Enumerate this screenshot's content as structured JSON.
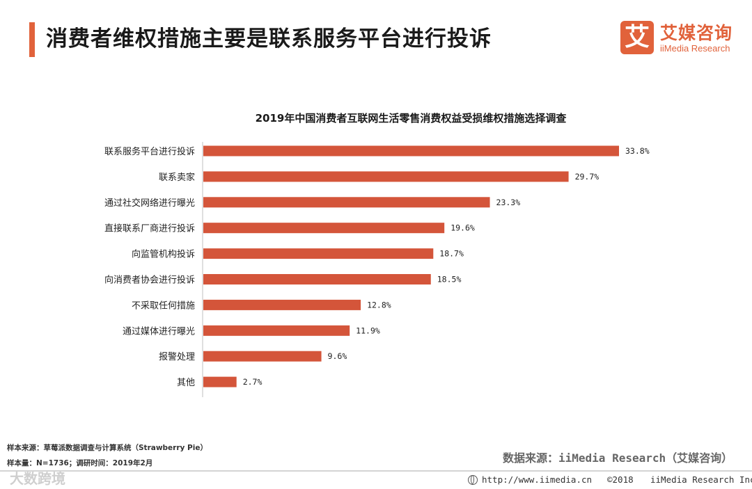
{
  "header": {
    "title": "消费者维权措施主要是联系服务平台进行投诉",
    "logo_mark": "艾",
    "logo_name": "艾媒咨询",
    "logo_sub": "iiMedia Research"
  },
  "chart_data": {
    "type": "bar",
    "orientation": "horizontal",
    "title": "2019年中国消费者互联网生活零售消费权益受损维权措施选择调查",
    "categories": [
      "联系服务平台进行投诉",
      "联系卖家",
      "通过社交网络进行曝光",
      "直接联系厂商进行投诉",
      "向监管机构投诉",
      "向消费者协会进行投诉",
      "不采取任何措施",
      "通过媒体进行曝光",
      "报警处理",
      "其他"
    ],
    "values": [
      33.8,
      29.7,
      23.3,
      19.6,
      18.7,
      18.5,
      12.8,
      11.9,
      9.6,
      2.7
    ],
    "value_labels": [
      "33.8%",
      "29.7%",
      "23.3%",
      "19.6%",
      "18.7%",
      "18.5%",
      "12.8%",
      "11.9%",
      "9.6%",
      "2.7%"
    ],
    "unit": "%",
    "xlim": [
      0,
      35
    ],
    "bar_color": "#d4553a",
    "axis_color": "#bfbfbf"
  },
  "footer": {
    "sample_source": "样本来源：草莓派数据调查与计算系统（Strawberry  Pie）",
    "sample_size": "样本量：N=1736；调研时间：2019年2月",
    "data_source": "数据来源：iiMedia Research（艾媒咨询）",
    "watermark": "大数跨境",
    "url": "http://www.iimedia.cn",
    "copyright": "©2018",
    "company": "iiMedia Research  Inc"
  }
}
